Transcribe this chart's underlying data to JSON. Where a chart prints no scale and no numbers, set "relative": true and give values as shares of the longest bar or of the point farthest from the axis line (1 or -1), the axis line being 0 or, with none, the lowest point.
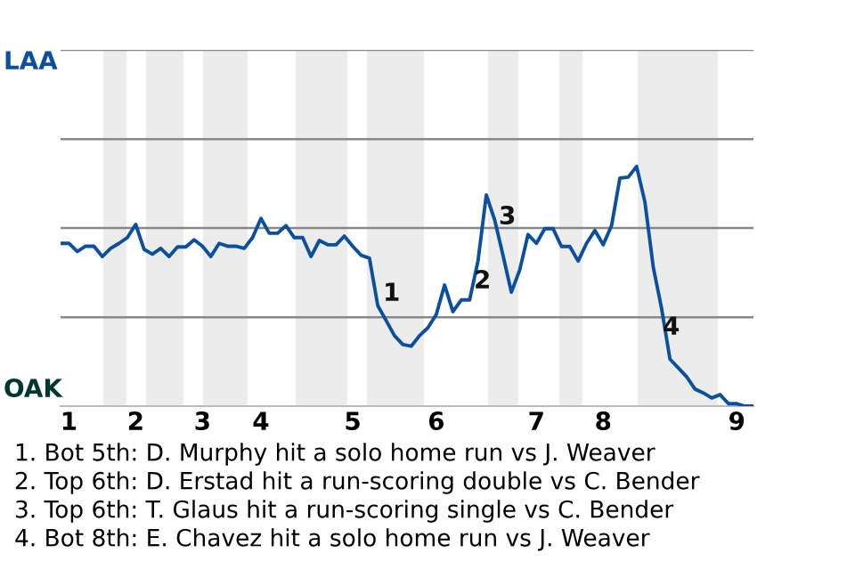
{
  "chart_data": {
    "type": "line",
    "relative": true,
    "categories": [
      null,
      "1",
      null,
      null,
      null,
      null,
      null,
      null,
      null,
      "2",
      null,
      null,
      null,
      null,
      null,
      null,
      null,
      "3",
      null,
      null,
      null,
      null,
      null,
      null,
      "4",
      null,
      null,
      null,
      null,
      null,
      null,
      null,
      null,
      null,
      null,
      "5",
      null,
      null,
      null,
      null,
      null,
      null,
      null,
      null,
      null,
      "6",
      null,
      null,
      null,
      null,
      null,
      null,
      null,
      null,
      null,
      null,
      null,
      "7",
      null,
      null,
      null,
      null,
      null,
      null,
      null,
      "8",
      null,
      null,
      null,
      null,
      null,
      null,
      null,
      null,
      null,
      null,
      null,
      null,
      null,
      null,
      null,
      "9",
      null,
      null
    ],
    "series": [
      {
        "color": "#0a4fa0",
        "values": [
          0.679,
          0.679,
          0.645,
          0.667,
          0.667,
          0.624,
          0.658,
          0.679,
          0.703,
          0.758,
          0.654,
          0.634,
          0.658,
          0.624,
          0.664,
          0.664,
          0.694,
          0.667,
          0.624,
          0.679,
          0.667,
          0.667,
          0.658,
          0.703,
          0.783,
          0.721,
          0.721,
          0.753,
          0.703,
          0.703,
          0.624,
          0.691,
          0.673,
          0.673,
          0.709,
          0.667,
          0.629,
          0.617,
          0.419,
          0.357,
          0.294,
          0.257,
          0.25,
          0.294,
          0.327,
          0.382,
          0.505,
          0.394,
          0.443,
          0.443,
          0.605,
          0.881,
          0.777,
          0.629,
          0.475,
          0.568,
          0.716,
          0.679,
          0.74,
          0.74,
          0.666,
          0.666,
          0.605,
          0.679,
          0.733,
          0.673,
          0.753,
          0.951,
          0.955,
          1,
          0.851,
          0.579,
          0.406,
          0.196,
          0.159,
          0.122,
          0.071,
          0.055,
          0.034,
          0.048,
          0.01,
          0.01,
          0,
          0
        ]
      }
    ],
    "ref_lines": [
      {
        "axis": "y",
        "value": 0.371,
        "label": null,
        "color": "#888888"
      },
      {
        "axis": "y",
        "value": 0.743,
        "label": null,
        "color": "#888888"
      },
      {
        "axis": "y",
        "value": 1.114,
        "label": null,
        "color": "#888888"
      },
      {
        "axis": "y",
        "value": 1.486,
        "label": null,
        "color": "#888888"
      }
    ],
    "annotations": [
      "LAA",
      "OAK",
      "1",
      "2",
      "3",
      "4",
      "1. Bot 5th: D. Murphy hit a solo home run vs J. Weaver",
      "2. Top 6th: D. Erstad hit a run-scoring double vs C. Bender",
      "3. Top 6th: T. Glaus hit a run-scoring single vs C. Bender",
      "4. Bot 8th: E. Chavez hit a solo home run vs J. Weaver"
    ],
    "marker": "none",
    "line_style": "solid",
    "legend": false
  }
}
